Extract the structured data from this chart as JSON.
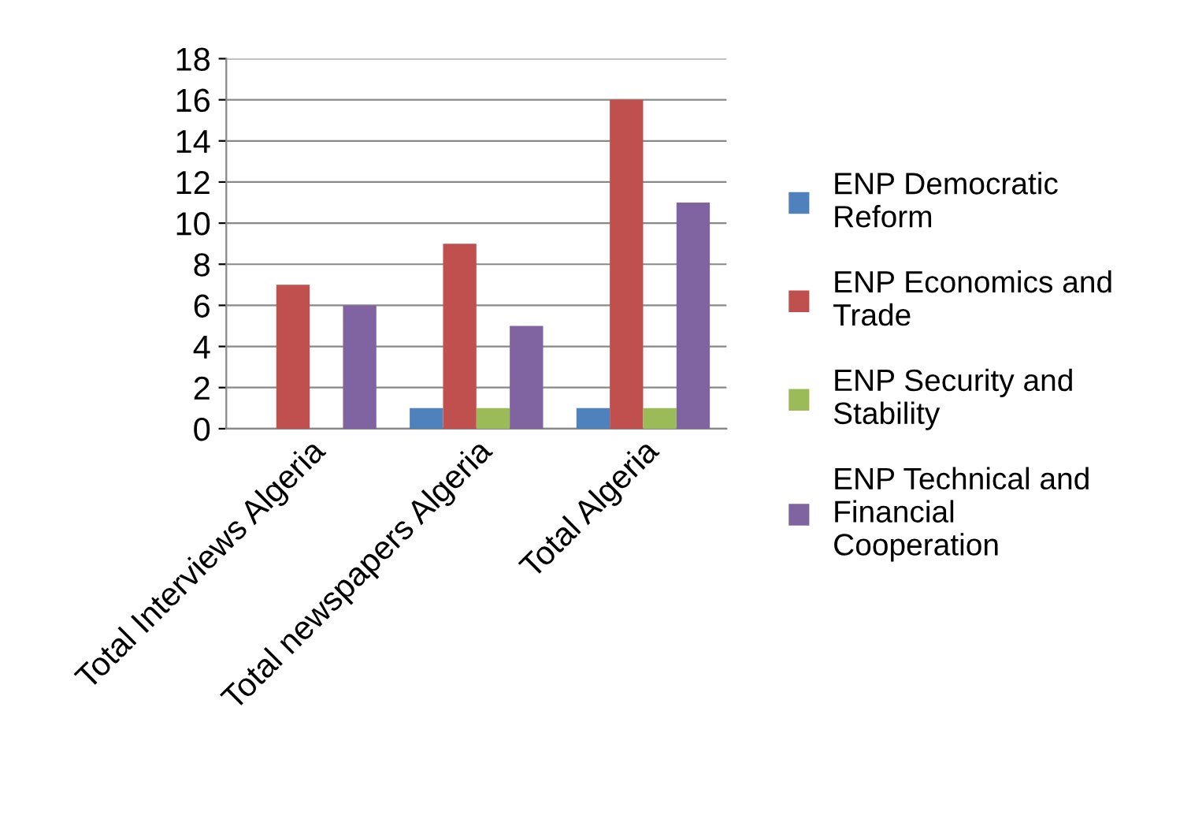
{
  "chart_data": {
    "type": "bar",
    "categories": [
      "Total Interviews Algeria",
      "Total newspapers Algeria",
      "Total Algeria"
    ],
    "series": [
      {
        "name": "ENP Democratic Reform",
        "color": "#4f81bd",
        "values": [
          0,
          1,
          1
        ]
      },
      {
        "name": "ENP Economics and Trade",
        "color": "#c0504d",
        "values": [
          7,
          9,
          16
        ]
      },
      {
        "name": "ENP Security and Stability",
        "color": "#9bbb59",
        "values": [
          0,
          1,
          1
        ]
      },
      {
        "name": "ENP Technical and Financial Cooperation",
        "color": "#8064a2",
        "values": [
          6,
          5,
          11
        ]
      }
    ],
    "ylim": [
      0,
      18
    ],
    "yticks": [
      0,
      2,
      4,
      6,
      8,
      10,
      12,
      14,
      16,
      18
    ],
    "grid": "y",
    "legend": "right"
  }
}
